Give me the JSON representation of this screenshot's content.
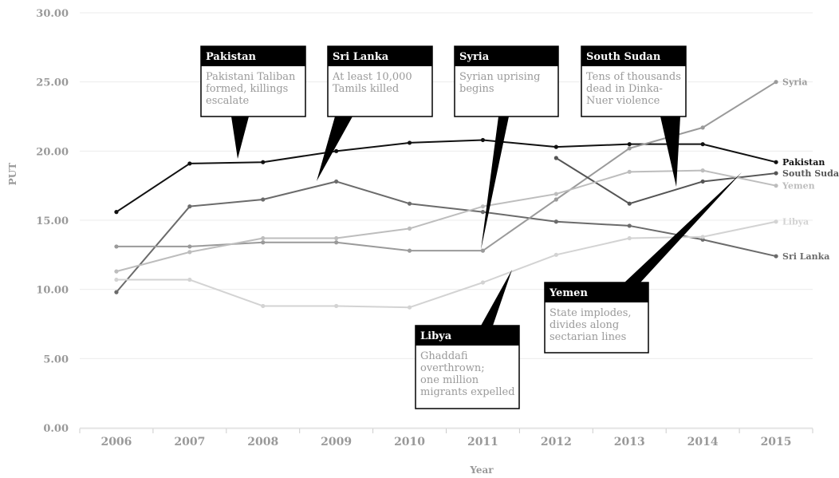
{
  "chart_data": {
    "type": "line",
    "xlabel": "Year",
    "ylabel": "PUT",
    "ylim": [
      0,
      30
    ],
    "yticks": [
      "0.00",
      "5.00",
      "10.00",
      "15.00",
      "20.00",
      "25.00",
      "30.00"
    ],
    "categories": [
      "2006",
      "2007",
      "2008",
      "2009",
      "2010",
      "2011",
      "2012",
      "2013",
      "2014",
      "2015"
    ],
    "grid": true,
    "legend": "labels at line ends",
    "series": [
      {
        "name": "Pakistan",
        "color": "#111111",
        "values": [
          15.6,
          19.1,
          19.2,
          20.0,
          20.6,
          20.8,
          20.3,
          20.5,
          20.5,
          19.2
        ]
      },
      {
        "name": "Sri Lanka",
        "color": "#6b6b6b",
        "values": [
          9.8,
          16.0,
          16.5,
          17.8,
          16.2,
          15.6,
          14.9,
          14.6,
          13.6,
          12.4
        ]
      },
      {
        "name": "Syria",
        "color": "#9a9a9a",
        "values": [
          13.1,
          13.1,
          13.4,
          13.4,
          12.8,
          12.8,
          16.5,
          20.2,
          21.7,
          25.0
        ]
      },
      {
        "name": "South Sudan",
        "color": "#555555",
        "values": [
          null,
          null,
          null,
          null,
          null,
          null,
          19.5,
          16.2,
          17.8,
          18.4
        ]
      },
      {
        "name": "Yemen",
        "color": "#bdbdbd",
        "values": [
          11.3,
          12.7,
          13.7,
          13.7,
          14.4,
          16.0,
          16.9,
          18.5,
          18.6,
          17.5
        ]
      },
      {
        "name": "Libya",
        "color": "#d3d3d3",
        "values": [
          10.7,
          10.7,
          8.8,
          8.8,
          8.7,
          10.5,
          12.5,
          13.7,
          13.8,
          14.9
        ]
      }
    ],
    "annotations": [
      {
        "title": "Pakistan",
        "text": [
          "Pakistani Taliban",
          "formed, killings",
          "escalate"
        ]
      },
      {
        "title": "Sri Lanka",
        "text": [
          "At least 10,000",
          "Tamils killed"
        ]
      },
      {
        "title": "Syria",
        "text": [
          "Syrian uprising",
          "begins"
        ]
      },
      {
        "title": "South Sudan",
        "text": [
          "Tens of thousands",
          "dead in Dinka-",
          "Nuer violence"
        ]
      },
      {
        "title": "Libya",
        "text": [
          "Ghaddafi",
          "overthrown;",
          "one million",
          "migrants expelled"
        ]
      },
      {
        "title": "Yemen",
        "text": [
          "State implodes,",
          "divides along",
          "sectarian lines"
        ]
      }
    ]
  }
}
